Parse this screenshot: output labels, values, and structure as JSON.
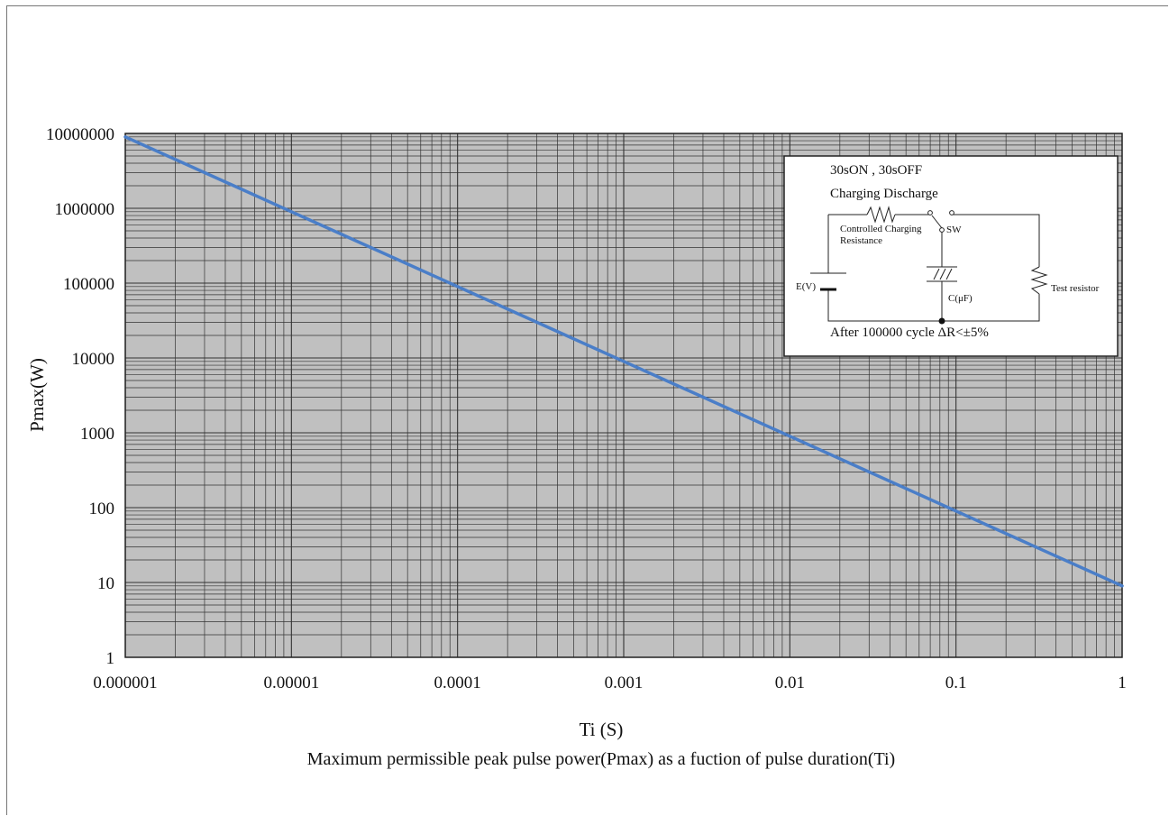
{
  "chart_data": {
    "type": "line",
    "xlabel": "Ti (S)",
    "ylabel": "Pmax(W)",
    "caption": "Maximum permissible peak pulse power(Pmax) as a fuction of pulse duration(Ti)",
    "x_scale": "log",
    "y_scale": "log",
    "xlim": [
      1e-06,
      1
    ],
    "ylim": [
      1,
      10000000
    ],
    "x_ticks": [
      "0.000001",
      "0.00001",
      "0.0001",
      "0.001",
      "0.01",
      "0.1",
      "1"
    ],
    "y_ticks": [
      "1",
      "10",
      "100",
      "1000",
      "10000",
      "100000",
      "1000000",
      "10000000"
    ],
    "grid": true,
    "series": [
      {
        "x": [
          1e-06,
          1e-05,
          0.0001,
          0.001,
          0.01,
          0.1,
          1
        ],
        "y": [
          9000000,
          900000,
          90000,
          9000,
          900,
          90,
          9
        ],
        "color": "#4a7ec8"
      }
    ],
    "colors": {
      "plot_background": "#c0c0c0",
      "grid": "#333333",
      "line": "#4a7ec8"
    }
  },
  "inset": {
    "line1": "30sON , 30sOFF",
    "line2": "Charging Discharge",
    "controlled_charging": "Controlled Charging",
    "resistance": "Resistance",
    "sw": "SW",
    "ev": "E(V)",
    "cuf": "C(μF)",
    "test_resistor": "Test resistor",
    "footer": "After 100000 cycle ΔR<±5%"
  }
}
